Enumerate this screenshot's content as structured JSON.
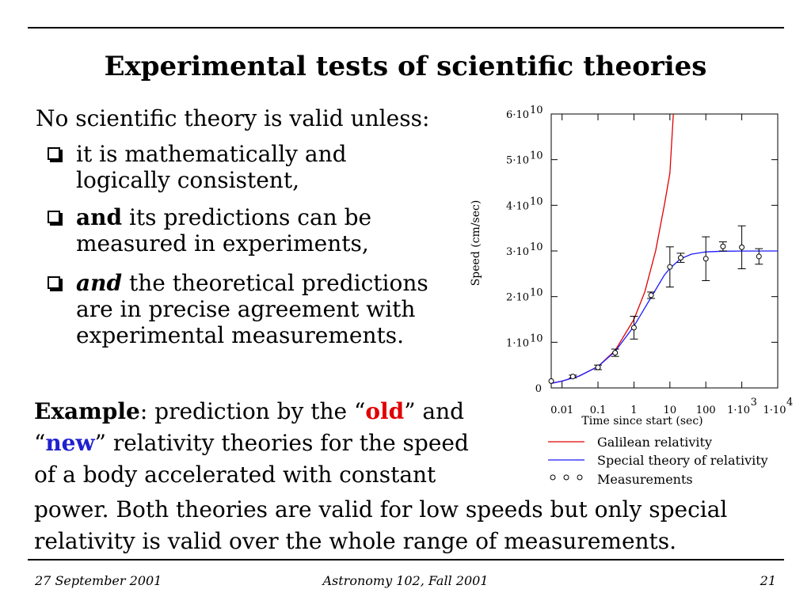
{
  "slide": {
    "title": "Experimental tests of scientific theories",
    "lead": "No scientific theory is valid unless:",
    "bullets": [
      {
        "prefix": "",
        "rest": "it is mathematically and",
        "line2": "logically consistent,"
      },
      {
        "prefix": "and",
        "rest": " its predictions can be",
        "line2": "measured in experiments,"
      },
      {
        "prefix": "and",
        "rest": " the theoretical predictions",
        "line2": "are in precise agreement with",
        "line3": "experimental measurements."
      }
    ],
    "example": {
      "label": "Example",
      "l1_a": ": prediction by the “",
      "old": "old",
      "l1_b": "” and",
      "l2_a": "“",
      "new": "new",
      "l2_b": "” relativity theories for the speed",
      "l3": "of a body accelerated with constant",
      "l4": "power.  Both theories are valid for low speeds but only special",
      "l5": "relativity is valid over the whole range of measurements."
    },
    "footer": {
      "date": "27 September 2001",
      "course": "Astronomy 102, Fall 2001",
      "page": "21"
    }
  },
  "chart_data": {
    "type": "line",
    "xlabel": "Time since start (sec)",
    "ylabel": "Speed (cm/sec)",
    "x_scale": "log",
    "xlim": [
      0.005,
      10000
    ],
    "ylim": [
      0,
      60000000000
    ],
    "x_ticks": [
      {
        "value": 0.01,
        "label": "0.01"
      },
      {
        "value": 0.1,
        "label": "0.1"
      },
      {
        "value": 1,
        "label": "1"
      },
      {
        "value": 10,
        "label": "10"
      },
      {
        "value": 100,
        "label": "100"
      },
      {
        "value": 1000,
        "label": "1·10",
        "exp": "3"
      },
      {
        "value": 10000,
        "label": "1·10",
        "exp": "4"
      }
    ],
    "y_ticks": [
      {
        "value": 0,
        "label": "0",
        "exp": ""
      },
      {
        "value": 10000000000,
        "label": "1·10",
        "exp": "10"
      },
      {
        "value": 20000000000,
        "label": "2·10",
        "exp": "10"
      },
      {
        "value": 30000000000,
        "label": "3·10",
        "exp": "10"
      },
      {
        "value": 40000000000,
        "label": "4·10",
        "exp": "10"
      },
      {
        "value": 50000000000,
        "label": "5·10",
        "exp": "10"
      },
      {
        "value": 60000000000,
        "label": "6·10",
        "exp": "10"
      }
    ],
    "grid": false,
    "legend_position": "below",
    "colors": {
      "galilean": "#e00000",
      "special": "#1a1aff",
      "measurements": "#000000"
    },
    "series": [
      {
        "name": "Galilean relativity",
        "kind": "line",
        "x": [
          0.005,
          0.01,
          0.03,
          0.1,
          0.3,
          1,
          2,
          4,
          7,
          10,
          12.5
        ],
        "y": [
          1000000000,
          1500000000,
          2600000000,
          4700000000,
          8200000000,
          15000000000,
          21000000000,
          30000000000,
          40000000000,
          47000000000,
          60000000000
        ]
      },
      {
        "name": "Special theory of relativity",
        "kind": "line",
        "x": [
          0.005,
          0.01,
          0.03,
          0.1,
          0.3,
          1,
          2,
          4,
          7,
          10,
          20,
          40,
          100,
          300,
          1000,
          10000
        ],
        "y": [
          1000000000,
          1500000000,
          2600000000,
          4700000000,
          8000000000,
          13500000000,
          17500000000,
          21500000000,
          24700000000,
          26200000000,
          28300000000,
          29300000000,
          29800000000,
          29950000000,
          29990000000,
          30000000000
        ]
      },
      {
        "name": "Measurements",
        "kind": "scatter",
        "points": [
          {
            "x": 0.005,
            "y": 1500000000,
            "err": 0
          },
          {
            "x": 0.02,
            "y": 2500000000,
            "err": 300000000
          },
          {
            "x": 0.1,
            "y": 4500000000,
            "err": 500000000
          },
          {
            "x": 0.3,
            "y": 7700000000,
            "err": 800000000
          },
          {
            "x": 1,
            "y": 13200000000,
            "err": 2500000000
          },
          {
            "x": 3,
            "y": 20300000000,
            "err": 700000000
          },
          {
            "x": 10,
            "y": 26500000000,
            "err": 4400000000
          },
          {
            "x": 20,
            "y": 28500000000,
            "err": 1000000000
          },
          {
            "x": 100,
            "y": 28300000000,
            "err": 4800000000
          },
          {
            "x": 300,
            "y": 31000000000,
            "err": 1000000000
          },
          {
            "x": 1000,
            "y": 30800000000,
            "err": 4700000000
          },
          {
            "x": 3000,
            "y": 28800000000,
            "err": 1700000000
          }
        ]
      }
    ]
  }
}
